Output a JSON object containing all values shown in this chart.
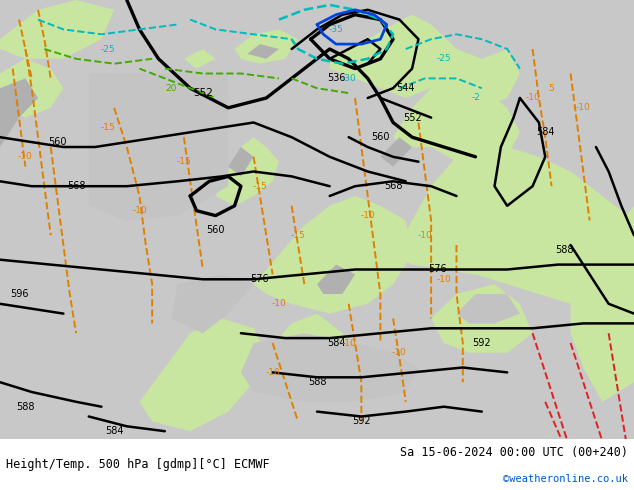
{
  "title_left": "Height/Temp. 500 hPa [gdmp][°C] ECMWF",
  "title_right": "Sa 15-06-2024 00:00 UTC (00+240)",
  "watermark": "©weatheronline.co.uk",
  "bg_color": "#c8c8c8",
  "land_color": "#c8e6a0",
  "gray_land_color": "#b0b0b0",
  "sea_color": "#c0c0c0",
  "z500_color": "#000000",
  "temp_orange_color": "#e08000",
  "temp_red_color": "#dd2222",
  "cyan_color": "#00bbbb",
  "blue_color": "#0044dd",
  "green_color": "#44aa00",
  "white_bar_color": "#ffffff",
  "label_color_black": "#000000",
  "title_fontsize": 8.5,
  "watermark_color": "#0055cc"
}
